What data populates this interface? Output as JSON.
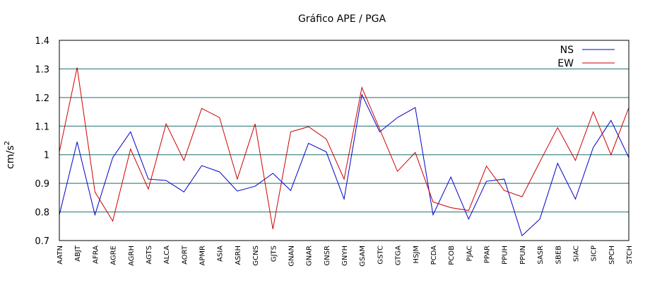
{
  "chart_data": {
    "type": "line",
    "title": "Gráfico  APE / PGA",
    "xlabel": "",
    "ylabel": "cm/s",
    "ylabel_superscript": "2",
    "ylim": [
      0.7,
      1.4
    ],
    "yticks": [
      "0.7",
      "0.8",
      "0.9",
      "1",
      "1.1",
      "1.2",
      "1.3",
      "1.4"
    ],
    "grid": "horizontal",
    "legend_position": "top-right",
    "categories": [
      "AATN",
      "ABJT",
      "AFRA",
      "AGRE",
      "AGRH",
      "AGTS",
      "ALCA",
      "AORT",
      "APMR",
      "ASIA",
      "ASRH",
      "GCNS",
      "GJTS",
      "GNAN",
      "GNAR",
      "GNSR",
      "GNYH",
      "GSAM",
      "GSTC",
      "GTGA",
      "HSJM",
      "PCDA",
      "PCOB",
      "PJAC",
      "PPAR",
      "PPUH",
      "PPUN",
      "SASR",
      "SBEB",
      "SIAC",
      "SICP",
      "SPCH",
      "STCH"
    ],
    "series": [
      {
        "name": "NS",
        "color": "#0000cc",
        "values": [
          0.79,
          1.045,
          0.79,
          0.99,
          1.08,
          0.915,
          0.91,
          0.87,
          0.962,
          0.94,
          0.873,
          0.89,
          0.935,
          0.875,
          1.04,
          1.01,
          0.845,
          1.21,
          1.08,
          1.13,
          1.165,
          0.79,
          0.922,
          0.775,
          0.907,
          0.915,
          0.717,
          0.775,
          0.97,
          0.845,
          1.025,
          1.12,
          0.99
        ]
      },
      {
        "name": "EW",
        "color": "#cc0000",
        "values": [
          1.01,
          1.305,
          0.87,
          0.768,
          1.02,
          0.88,
          1.108,
          0.98,
          1.162,
          1.13,
          0.915,
          1.108,
          0.74,
          1.08,
          1.098,
          1.055,
          0.915,
          1.235,
          1.09,
          0.942,
          1.008,
          0.835,
          0.815,
          0.805,
          0.96,
          0.875,
          0.853,
          0.975,
          1.095,
          0.98,
          1.15,
          1.0,
          1.165
        ]
      }
    ]
  }
}
